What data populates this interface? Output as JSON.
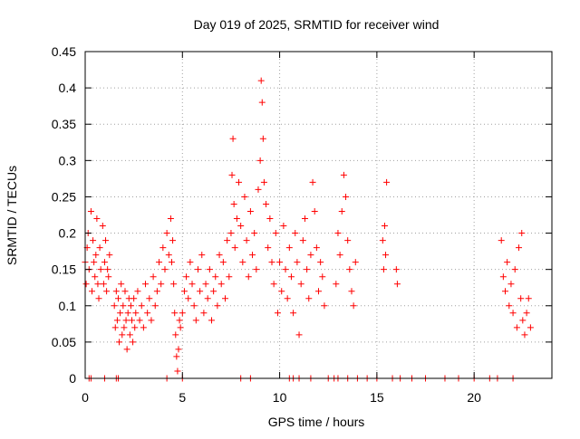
{
  "chart_data": {
    "type": "scatter",
    "title": "Day 019 of 2025, SRMTID for receiver wind",
    "xlabel": "GPS time / hours",
    "ylabel": "SRMTID / TECUs",
    "xlim": [
      0,
      24
    ],
    "ylim": [
      0,
      0.45
    ],
    "xticks": [
      0,
      5,
      10,
      15,
      20
    ],
    "xtick_labels": [
      "0",
      "5",
      "10",
      "15",
      "20"
    ],
    "yticks": [
      0,
      0.05,
      0.1,
      0.15,
      0.2,
      0.25,
      0.3,
      0.35,
      0.4,
      0.45
    ],
    "ytick_labels": [
      "0",
      "0.05",
      "0.1",
      "0.15",
      "0.2",
      "0.25",
      "0.3",
      "0.35",
      "0.4",
      "0.45"
    ],
    "grid": true,
    "marker": "plus",
    "color": "#ff0000",
    "series": [
      {
        "name": "SRMTID",
        "x": [
          0.0,
          0.05,
          0.1,
          0.15,
          0.2,
          0.3,
          0.35,
          0.4,
          0.45,
          0.5,
          0.55,
          0.6,
          0.65,
          0.7,
          0.75,
          0.8,
          0.9,
          0.95,
          1.0,
          1.05,
          1.1,
          1.15,
          1.2,
          1.25,
          1.5,
          1.55,
          1.6,
          1.65,
          1.7,
          1.75,
          1.8,
          1.85,
          1.9,
          1.95,
          2.0,
          2.05,
          2.1,
          2.15,
          2.2,
          2.25,
          2.3,
          2.35,
          2.4,
          2.45,
          2.5,
          2.55,
          2.6,
          2.7,
          2.8,
          2.9,
          3.0,
          3.1,
          3.2,
          3.3,
          3.4,
          3.5,
          3.6,
          3.7,
          3.8,
          3.9,
          4.0,
          4.1,
          4.2,
          4.3,
          4.4,
          4.45,
          4.5,
          4.55,
          4.6,
          4.65,
          4.7,
          4.75,
          4.8,
          4.85,
          4.9,
          5.0,
          5.1,
          5.2,
          5.3,
          5.4,
          5.5,
          5.6,
          5.7,
          5.8,
          5.9,
          6.0,
          6.1,
          6.2,
          6.3,
          6.4,
          6.5,
          6.6,
          6.7,
          6.8,
          6.9,
          7.0,
          7.1,
          7.2,
          7.3,
          7.4,
          7.5,
          7.55,
          7.6,
          7.65,
          7.7,
          7.8,
          7.9,
          8.0,
          8.1,
          8.2,
          8.3,
          8.4,
          8.5,
          8.6,
          8.7,
          8.8,
          8.9,
          9.0,
          9.05,
          9.1,
          9.15,
          9.2,
          9.3,
          9.4,
          9.5,
          9.6,
          9.7,
          9.8,
          9.9,
          10.0,
          10.1,
          10.2,
          10.3,
          10.4,
          10.5,
          10.6,
          10.7,
          10.8,
          10.9,
          11.0,
          11.1,
          11.2,
          11.3,
          11.4,
          11.5,
          11.6,
          11.7,
          11.8,
          11.9,
          12.0,
          12.1,
          12.2,
          12.3,
          12.9,
          13.0,
          13.1,
          13.2,
          13.3,
          13.4,
          13.5,
          13.6,
          13.7,
          13.8,
          13.9,
          15.3,
          15.35,
          15.4,
          15.45,
          15.5,
          16.0,
          16.05,
          21.4,
          21.5,
          21.6,
          21.7,
          21.8,
          21.9,
          22.0,
          22.1,
          22.2,
          22.3,
          22.4,
          22.45,
          22.5,
          22.6,
          22.7,
          22.8,
          22.9,
          0.2,
          0.3,
          1.0,
          1.6,
          1.7,
          4.2,
          5.0,
          8.0,
          8.5,
          10.5,
          10.7,
          11.0,
          11.6,
          12.5,
          12.8,
          13.0,
          13.5,
          14.0,
          14.5,
          15.0,
          15.8,
          16.2,
          16.8,
          17.5,
          18.5,
          19.2,
          20.0,
          20.8,
          21.2,
          22.0
        ],
        "y": [
          0.16,
          0.13,
          0.18,
          0.2,
          0.15,
          0.23,
          0.12,
          0.19,
          0.16,
          0.14,
          0.17,
          0.22,
          0.13,
          0.11,
          0.18,
          0.15,
          0.21,
          0.13,
          0.16,
          0.19,
          0.12,
          0.15,
          0.14,
          0.17,
          0.1,
          0.07,
          0.12,
          0.08,
          0.11,
          0.05,
          0.09,
          0.13,
          0.06,
          0.1,
          0.07,
          0.12,
          0.08,
          0.04,
          0.09,
          0.11,
          0.06,
          0.1,
          0.08,
          0.05,
          0.11,
          0.07,
          0.09,
          0.12,
          0.08,
          0.1,
          0.07,
          0.13,
          0.09,
          0.11,
          0.08,
          0.14,
          0.1,
          0.12,
          0.16,
          0.13,
          0.18,
          0.15,
          0.2,
          0.17,
          0.22,
          0.16,
          0.19,
          0.13,
          0.09,
          0.06,
          0.03,
          0.01,
          0.04,
          0.08,
          0.07,
          0.09,
          0.12,
          0.14,
          0.11,
          0.16,
          0.13,
          0.1,
          0.08,
          0.15,
          0.12,
          0.17,
          0.09,
          0.13,
          0.11,
          0.15,
          0.08,
          0.12,
          0.14,
          0.1,
          0.17,
          0.13,
          0.16,
          0.11,
          0.19,
          0.14,
          0.2,
          0.28,
          0.33,
          0.24,
          0.18,
          0.22,
          0.27,
          0.21,
          0.16,
          0.25,
          0.19,
          0.14,
          0.23,
          0.17,
          0.2,
          0.15,
          0.26,
          0.3,
          0.41,
          0.38,
          0.33,
          0.27,
          0.24,
          0.18,
          0.22,
          0.16,
          0.13,
          0.2,
          0.09,
          0.16,
          0.12,
          0.21,
          0.15,
          0.11,
          0.18,
          0.14,
          0.09,
          0.2,
          0.16,
          0.06,
          0.13,
          0.19,
          0.22,
          0.15,
          0.11,
          0.17,
          0.27,
          0.23,
          0.18,
          0.12,
          0.16,
          0.14,
          0.1,
          0.13,
          0.2,
          0.17,
          0.23,
          0.28,
          0.25,
          0.19,
          0.15,
          0.12,
          0.1,
          0.16,
          0.19,
          0.15,
          0.21,
          0.17,
          0.27,
          0.15,
          0.13,
          0.19,
          0.14,
          0.12,
          0.16,
          0.1,
          0.13,
          0.09,
          0.15,
          0.07,
          0.18,
          0.11,
          0.2,
          0.08,
          0.06,
          0.09,
          0.11,
          0.07,
          0,
          0,
          0,
          0,
          0,
          0,
          0,
          0,
          0,
          0,
          0,
          0,
          0,
          0,
          0,
          0,
          0,
          0,
          0,
          0,
          0,
          0,
          0,
          0,
          0,
          0,
          0,
          0,
          0,
          0
        ]
      }
    ]
  }
}
